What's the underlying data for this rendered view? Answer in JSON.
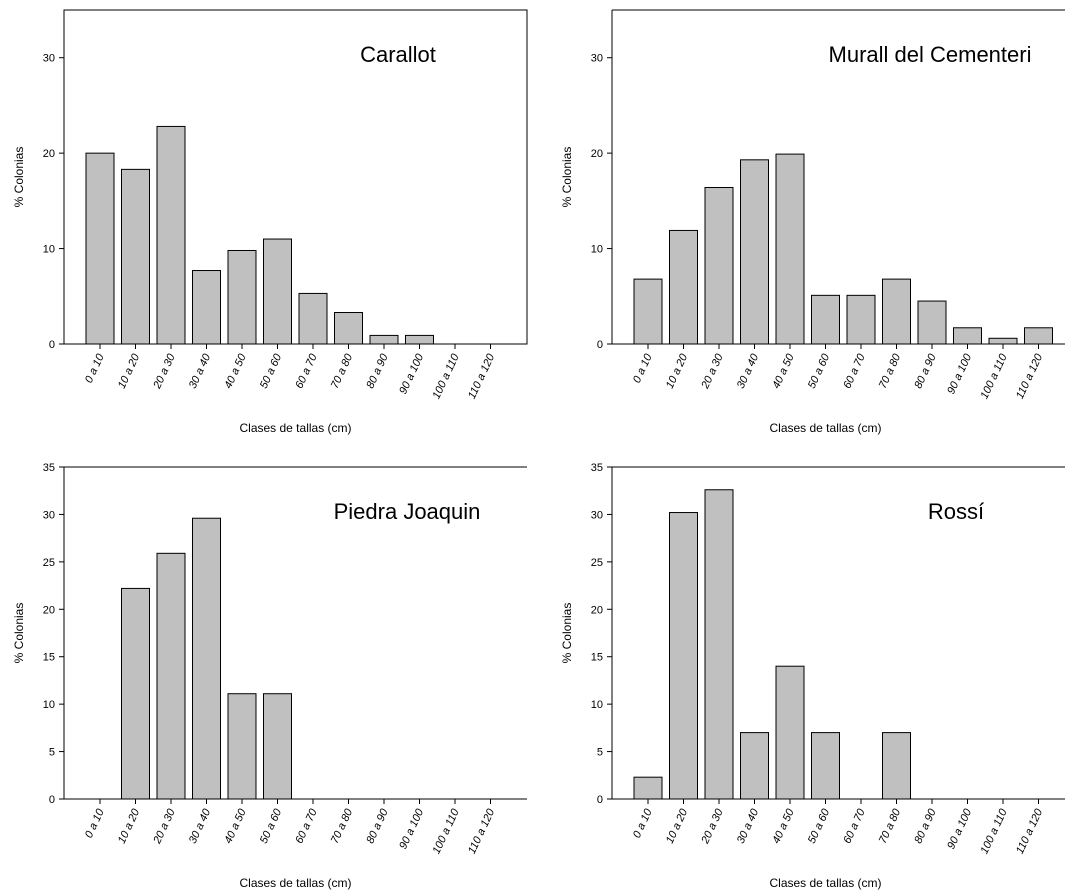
{
  "chart_data": [
    {
      "type": "bar",
      "title": "Carallot",
      "xlabel": "Clases de tallas (cm)",
      "ylabel": "% Colonias",
      "ylim": [
        0,
        35
      ],
      "yticks": [
        "0",
        "10",
        "20",
        "30"
      ],
      "categories": [
        "0 a 10",
        "10 a 20",
        "20 a 30",
        "30 a 40",
        "40 a 50",
        "50 a 60",
        "60 a 70",
        "70 a 80",
        "80 a 90",
        "90 a 100",
        "100 a 110",
        "110 a 120"
      ],
      "values": [
        20.0,
        18.3,
        22.8,
        7.7,
        9.8,
        11.0,
        5.3,
        3.3,
        0.9,
        0.9,
        0,
        0
      ]
    },
    {
      "type": "bar",
      "title": "Murall del Cementeri",
      "xlabel": "Clases de tallas (cm)",
      "ylabel": "% Colonias",
      "ylim": [
        0,
        35
      ],
      "yticks": [
        "0",
        "10",
        "20",
        "30"
      ],
      "categories": [
        "0 a 10",
        "10 a 20",
        "20 a 30",
        "30 a 40",
        "40 a 50",
        "50 a 60",
        "60 a 70",
        "70 a 80",
        "80 a 90",
        "90 a 100",
        "100 a 110",
        "110 a 120"
      ],
      "values": [
        6.8,
        11.9,
        16.4,
        19.3,
        19.9,
        5.1,
        5.1,
        6.8,
        4.5,
        1.7,
        0.6,
        1.7
      ]
    },
    {
      "type": "bar",
      "title": "Piedra Joaquin",
      "xlabel": "Clases de tallas (cm)",
      "ylabel": "% Colonias",
      "ylim": [
        0,
        35
      ],
      "yticks": [
        "0",
        "5",
        "10",
        "15",
        "20",
        "25",
        "30",
        "35"
      ],
      "categories": [
        "0 a 10",
        "10 a 20",
        "20 a 30",
        "30 a 40",
        "40 a 50",
        "50 a 60",
        "60 a 70",
        "70 a 80",
        "80 a 90",
        "90 a 100",
        "100 a 110",
        "110 a 120"
      ],
      "values": [
        0,
        22.2,
        25.9,
        29.6,
        11.1,
        11.1,
        0,
        0,
        0,
        0,
        0,
        0
      ]
    },
    {
      "type": "bar",
      "title": "Rossí",
      "xlabel": "Clases de tallas (cm)",
      "ylabel": "% Colonias",
      "ylim": [
        0,
        35
      ],
      "yticks": [
        "0",
        "5",
        "10",
        "15",
        "20",
        "25",
        "30",
        "35"
      ],
      "categories": [
        "0 a 10",
        "10 a 20",
        "20 a 30",
        "30 a 40",
        "40 a 50",
        "50 a 60",
        "60 a 70",
        "70 a 80",
        "80 a 90",
        "90 a 100",
        "100 a 110",
        "110 a 120"
      ],
      "values": [
        2.3,
        30.2,
        32.6,
        7.0,
        14.0,
        7.0,
        0,
        7.0,
        0,
        0,
        0,
        0
      ]
    }
  ]
}
